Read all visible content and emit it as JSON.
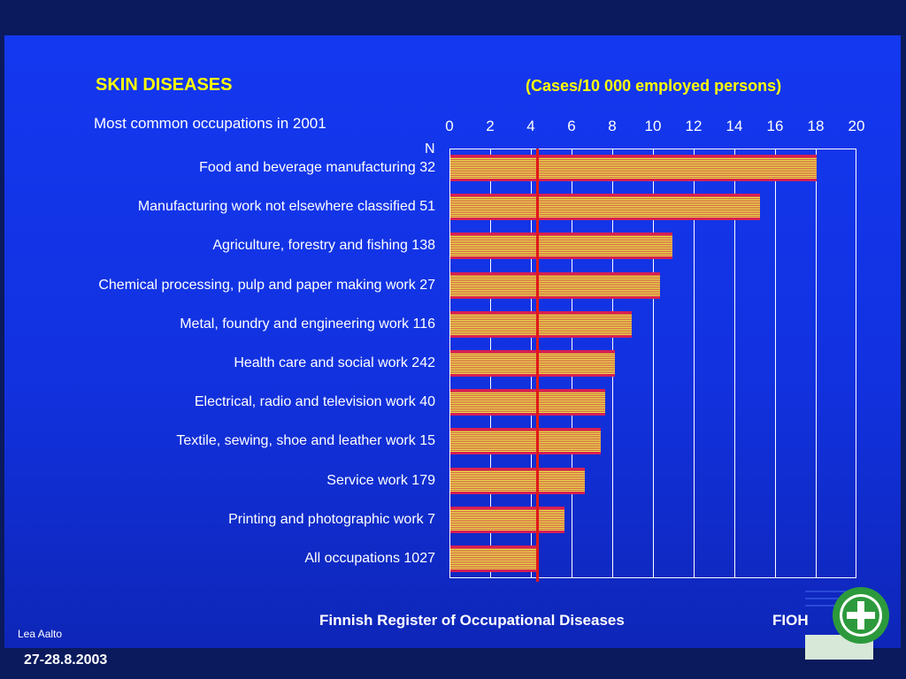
{
  "header": {
    "title": "SKIN DISEASES",
    "unit": "(Cases/10 000 employed persons)",
    "subtitle": "Most common occupations in 2001",
    "n_label": "N"
  },
  "footer": {
    "register": "Finnish Register of Occupational Diseases",
    "org": "FIOH",
    "author": "Lea Aalto",
    "date": "27-28.8.2003"
  },
  "colors": {
    "background": "#1438f0",
    "title": "#ffff00",
    "bar_light": "#e8e84a",
    "bar_dark": "#d81f52",
    "reference_line": "#e01818"
  },
  "logo": {
    "icon": "green-cross-seal-icon"
  },
  "chart_data": {
    "type": "bar",
    "orientation": "horizontal",
    "xlim": [
      0,
      20
    ],
    "ticks": [
      "0",
      "2",
      "4",
      "6",
      "8",
      "10",
      "12",
      "14",
      "16",
      "18",
      "20"
    ],
    "grid": true,
    "categories": [
      "Food and beverage manufacturing 32",
      "Manufacturing work not elsewhere classified 51",
      "Agriculture, forestry and fishing 138",
      "Chemical processing, pulp and paper making work 27",
      "Metal, foundry and engineering work 116",
      "Health care and social work 242",
      "Electrical, radio and television work 40",
      "Textile, sewing, shoe and leather work 15",
      "Service work 179",
      "Printing and photographic work 7",
      "All occupations 1027"
    ],
    "values": [
      18.0,
      15.2,
      10.9,
      10.3,
      8.9,
      8.1,
      7.6,
      7.4,
      6.6,
      5.6,
      4.3
    ],
    "reference_line": 4.3
  }
}
